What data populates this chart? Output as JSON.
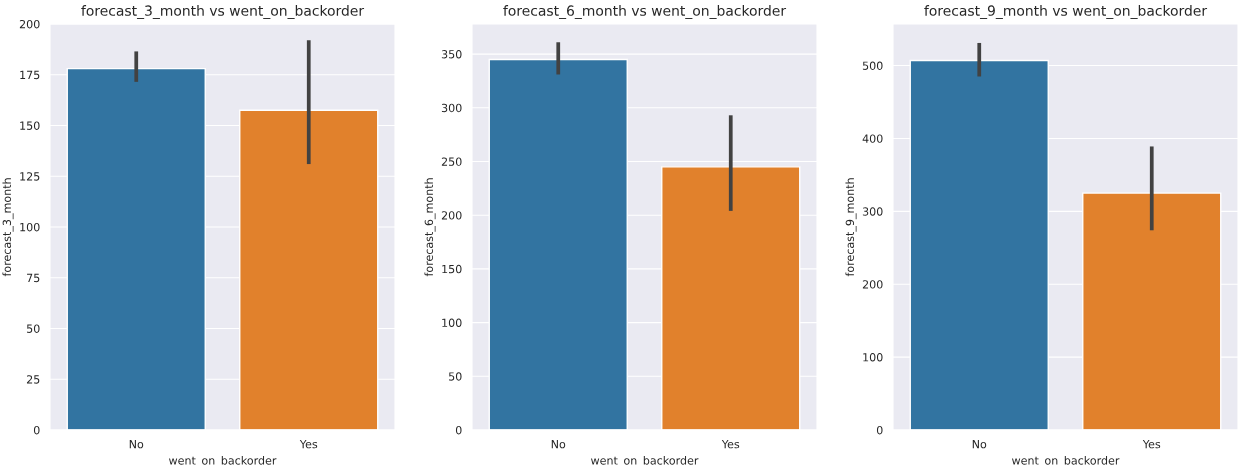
{
  "chart_data": [
    {
      "type": "bar",
      "title": "forecast_3_month vs went_on_backorder",
      "xlabel": "went_on_backorder",
      "ylabel": "forecast_3_month",
      "categories": [
        "No",
        "Yes"
      ],
      "values": [
        178,
        157.5
      ],
      "colors": [
        "#3274a1",
        "#e1812c"
      ],
      "errors": [
        [
          171.5,
          186.5
        ],
        [
          131,
          192
        ]
      ],
      "ylim": [
        0,
        200
      ],
      "yticks": [
        0,
        25,
        50,
        75,
        100,
        125,
        150,
        175,
        200
      ],
      "grid": true
    },
    {
      "type": "bar",
      "title": "forecast_6_month vs went_on_backorder",
      "xlabel": "went_on_backorder",
      "ylabel": "forecast_6_month",
      "categories": [
        "No",
        "Yes"
      ],
      "values": [
        345,
        245
      ],
      "colors": [
        "#3274a1",
        "#e1812c"
      ],
      "errors": [
        [
          331,
          361
        ],
        [
          204,
          293
        ]
      ],
      "ylim": [
        0,
        378
      ],
      "yticks": [
        0,
        50,
        100,
        150,
        200,
        250,
        300,
        350
      ],
      "grid": true
    },
    {
      "type": "bar",
      "title": "forecast_9_month vs went_on_backorder",
      "xlabel": "went_on_backorder",
      "ylabel": "forecast_9_month",
      "categories": [
        "No",
        "Yes"
      ],
      "values": [
        507,
        325
      ],
      "colors": [
        "#3274a1",
        "#e1812c"
      ],
      "errors": [
        [
          485,
          531
        ],
        [
          274,
          389
        ]
      ],
      "ylim": [
        0,
        557
      ],
      "yticks": [
        0,
        100,
        200,
        300,
        400,
        500
      ],
      "grid": true
    }
  ]
}
